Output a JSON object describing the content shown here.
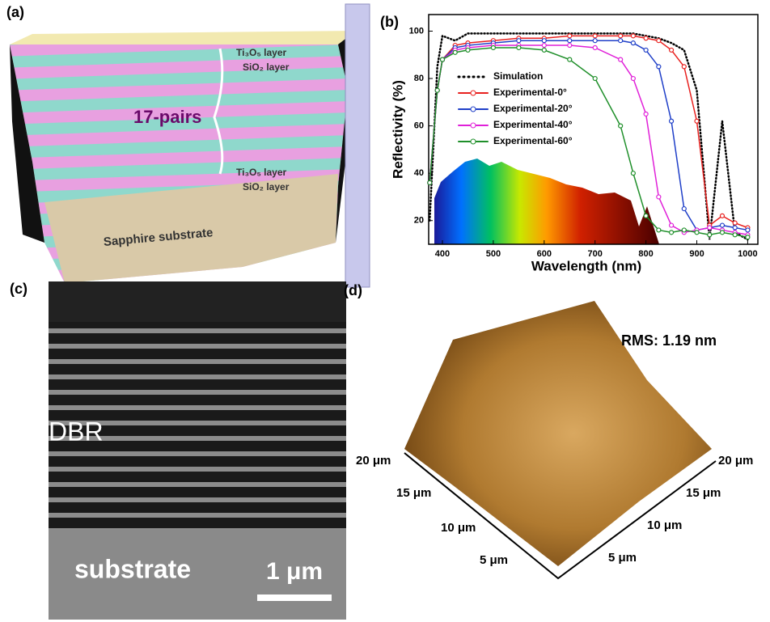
{
  "panel_a": {
    "label": "(a)",
    "upper_top_layer": "Ti₃O₅ layer",
    "upper_bottom_layer": "SiO₂ layer",
    "pairs": "17-pairs",
    "lower_top_layer": "Ti₃O₅ layer",
    "lower_bottom_layer": "SiO₂ layer",
    "substrate": "Sapphire substrate"
  },
  "chart_data": {
    "type": "line",
    "panel_label": "(b)",
    "x_label": "Wavelength (nm)",
    "y_label": "Reflectivity (%)",
    "x": [
      375,
      390,
      400,
      425,
      450,
      500,
      550,
      600,
      650,
      700,
      750,
      775,
      800,
      825,
      850,
      875,
      900,
      925,
      950,
      975,
      1000
    ],
    "series": [
      {
        "name": "Simulation",
        "color": "#000000",
        "line_style": "dotted",
        "values": [
          20,
          85,
          98,
          96,
          99,
          99,
          99,
          99,
          99,
          99,
          99,
          99,
          98,
          97,
          95,
          92,
          75,
          12,
          62,
          15,
          12
        ]
      },
      {
        "name": "Experimental-0°",
        "color": "#e8211f",
        "line_style": "solid",
        "values": [
          36,
          75,
          88,
          94,
          95,
          96,
          97,
          97,
          98,
          98,
          98,
          98,
          97,
          96,
          92,
          85,
          62,
          18,
          22,
          19,
          17
        ]
      },
      {
        "name": "Experimental-20°",
        "color": "#1f3fc8",
        "line_style": "solid",
        "values": [
          36,
          75,
          88,
          93,
          94,
          95,
          96,
          96,
          96,
          96,
          96,
          95,
          92,
          85,
          62,
          25,
          16,
          17,
          18,
          17,
          16
        ]
      },
      {
        "name": "Experimental-40°",
        "color": "#e020d8",
        "line_style": "solid",
        "values": [
          36,
          75,
          88,
          92,
          93,
          94,
          94,
          94,
          94,
          93,
          88,
          80,
          65,
          30,
          18,
          15,
          16,
          17,
          16,
          15,
          14
        ]
      },
      {
        "name": "Experimental-60°",
        "color": "#1f8f2a",
        "line_style": "solid",
        "values": [
          36,
          75,
          88,
          91,
          92,
          93,
          93,
          92,
          88,
          80,
          60,
          40,
          22,
          16,
          15,
          16,
          15,
          14,
          15,
          14,
          13
        ]
      }
    ],
    "xlim": [
      373,
      1020
    ],
    "ylim": [
      10,
      107
    ],
    "xticks": [
      400,
      500,
      600,
      700,
      800,
      900,
      1000
    ],
    "yticks": [
      20,
      40,
      60,
      80,
      100
    ]
  },
  "panel_c": {
    "label": "(c)",
    "dbr": "DBR",
    "substrate": "substrate",
    "scale_bar": "1 μm"
  },
  "panel_d": {
    "label": "(d)",
    "rms": "RMS: 1.19 nm",
    "left_ticks": [
      "20 μm",
      "15 μm",
      "10 μm",
      "5 μm"
    ],
    "right_ticks": [
      "20 μm",
      "15 μm",
      "10 μm",
      "5 μm"
    ]
  }
}
